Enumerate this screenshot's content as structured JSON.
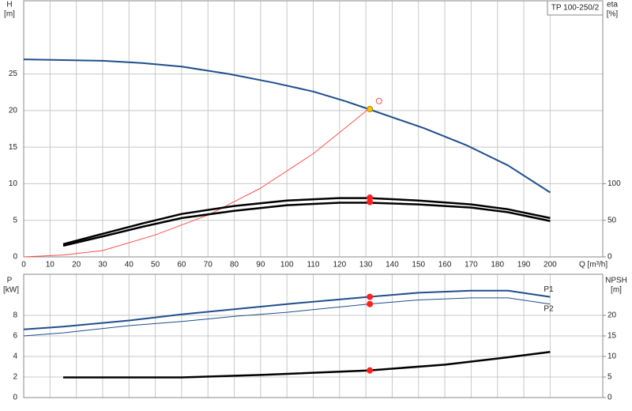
{
  "chart_data": [
    {
      "type": "line",
      "title": "TP 100-250/2",
      "ylabel": "H",
      "yunit": "[m]",
      "y2label": "eta",
      "y2unit": "[%]",
      "xlabel": "Q [m³/h]",
      "xlim": [
        0,
        220
      ],
      "xticks": [
        0,
        10,
        20,
        30,
        40,
        50,
        60,
        70,
        80,
        90,
        100,
        110,
        120,
        130,
        140,
        150,
        160,
        170,
        180,
        190,
        200
      ],
      "ylim": [
        0,
        35
      ],
      "yticks": [
        0,
        5,
        10,
        15,
        20,
        25
      ],
      "y2lim": [
        0,
        350
      ],
      "y2ticks": [
        0,
        50,
        100
      ],
      "grid": true,
      "series": [
        {
          "color": "#1f4e8c",
          "width": 2,
          "x": [
            0,
            15,
            30,
            45,
            60,
            78,
            95,
            110,
            122,
            131,
            152,
            168,
            184,
            200
          ],
          "values": [
            27.0,
            26.9,
            26.8,
            26.5,
            26.0,
            25.0,
            23.8,
            22.6,
            21.3,
            20.2,
            17.6,
            15.3,
            12.5,
            8.8
          ]
        },
        {
          "color": "#ff4d4d",
          "width": 1,
          "x": [
            0,
            15,
            30,
            50,
            70,
            90,
            110,
            131
          ],
          "values": [
            0,
            0.26,
            0.86,
            3.0,
            5.7,
            9.4,
            14.1,
            20.2
          ]
        },
        {
          "color": "#000000",
          "width": 2.5,
          "axis": "y2",
          "x": [
            15,
            30,
            45,
            60,
            80,
            100,
            120,
            131,
            150,
            170,
            184,
            200
          ],
          "values": [
            17.4,
            31.5,
            45.6,
            58.7,
            69.6,
            77,
            80.4,
            80.4,
            77,
            71.7,
            65,
            53
          ]
        },
        {
          "color": "#000000",
          "width": 2.5,
          "axis": "y2",
          "x": [
            15,
            30,
            45,
            60,
            80,
            100,
            120,
            131,
            150,
            170,
            184,
            200
          ],
          "values": [
            15.2,
            28,
            41,
            53,
            63,
            70.7,
            74,
            74,
            71.7,
            67.4,
            61,
            49
          ]
        }
      ],
      "markers": [
        {
          "x": 131.5,
          "y": 20.2,
          "color": "#f5c400",
          "style": "filled"
        },
        {
          "x": 135,
          "y": 21.3,
          "color": "#ff4d4d",
          "style": "hollow"
        },
        {
          "x": 131.5,
          "y": 81,
          "color": "#ff2020",
          "style": "filled",
          "axis": "y2"
        },
        {
          "x": 131.5,
          "y": 75,
          "color": "#ff2020",
          "style": "filled",
          "axis": "y2"
        }
      ]
    },
    {
      "type": "line",
      "ylabel": "P",
      "yunit": "[kW]",
      "y2label": "NPSH",
      "y2unit": "[m]",
      "xlim": [
        0,
        220
      ],
      "xticks": [
        0,
        10,
        20,
        30,
        40,
        50,
        60,
        70,
        80,
        90,
        100,
        110,
        120,
        130,
        140,
        150,
        160,
        170,
        180,
        190,
        200
      ],
      "ylim": [
        0,
        12
      ],
      "yticks": [
        0,
        2,
        4,
        6,
        8
      ],
      "y2lim": [
        0,
        30
      ],
      "y2ticks": [
        0,
        5,
        10,
        15,
        20
      ],
      "grid": true,
      "series": [
        {
          "name": "P1",
          "color": "#1f4e8c",
          "width": 2,
          "x": [
            0,
            15,
            40,
            60,
            80,
            100,
            131,
            150,
            170,
            184,
            200
          ],
          "values": [
            6.64,
            6.9,
            7.5,
            8.1,
            8.6,
            9.1,
            9.8,
            10.2,
            10.4,
            10.4,
            9.8
          ]
        },
        {
          "name": "P2",
          "color": "#1f4e8c",
          "width": 1,
          "x": [
            0,
            15,
            40,
            60,
            80,
            100,
            131,
            150,
            170,
            184,
            200
          ],
          "values": [
            6.0,
            6.3,
            7.0,
            7.4,
            7.9,
            8.3,
            9.1,
            9.5,
            9.7,
            9.7,
            9.1
          ]
        },
        {
          "color": "#000000",
          "width": 2.5,
          "axis": "y2",
          "x": [
            15,
            60,
            90,
            131,
            160,
            184,
            200
          ],
          "values": [
            4.9,
            4.9,
            5.5,
            6.6,
            8.0,
            9.8,
            11.1
          ]
        }
      ],
      "markers": [
        {
          "x": 131.5,
          "y": 9.8,
          "color": "#ff2020",
          "style": "filled"
        },
        {
          "x": 131.5,
          "y": 9.1,
          "color": "#ff2020",
          "style": "filled"
        },
        {
          "x": 131.5,
          "y": 6.6,
          "color": "#ff2020",
          "style": "filled",
          "axis": "y2"
        }
      ]
    }
  ]
}
